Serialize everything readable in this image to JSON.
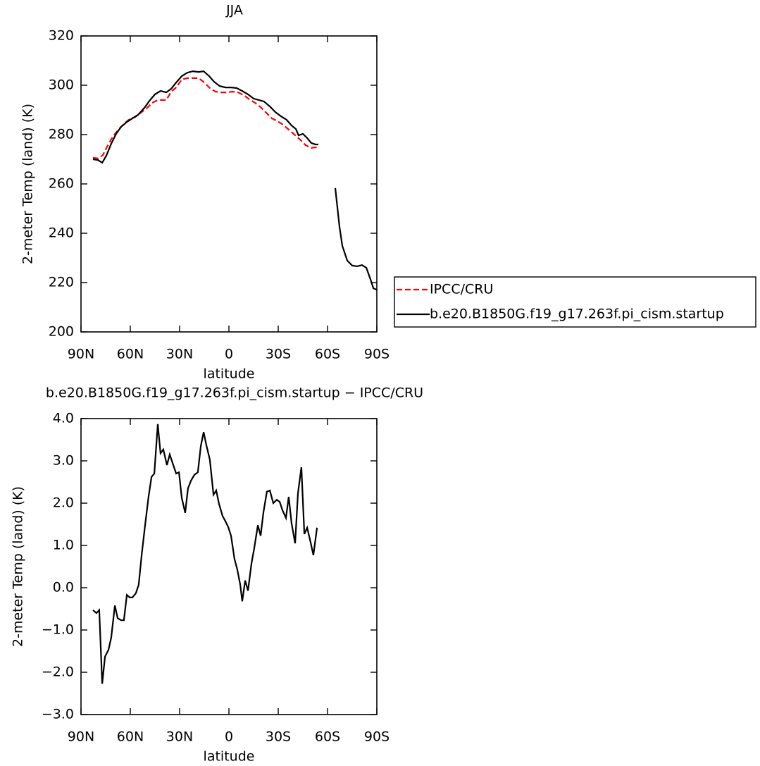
{
  "chart_data": [
    {
      "type": "line",
      "title": "JJA",
      "xlabel": "latitude",
      "ylabel": "2-meter Temp (land) (K)",
      "xlim": [
        90,
        -90
      ],
      "xticks": [
        {
          "value": 90,
          "label": "90N"
        },
        {
          "value": 60,
          "label": "60N"
        },
        {
          "value": 30,
          "label": "30N"
        },
        0,
        {
          "value": -30,
          "label": "30S"
        },
        {
          "value": -60,
          "label": "60S"
        },
        {
          "value": -90,
          "label": "90S"
        }
      ],
      "ylim": [
        200,
        320
      ],
      "yticks": [
        200,
        220,
        240,
        260,
        280,
        300,
        320
      ],
      "legend": "right",
      "series": [
        {
          "name": "IPCC/CRU",
          "color": "#ff0000",
          "style": "dashed",
          "x": [
            82.7,
            79.7,
            76.7,
            74.1,
            70.7,
            67.3,
            63.9,
            60.4,
            57,
            53.6,
            50.1,
            46.7,
            43.3,
            41.1,
            38.1,
            35.1,
            32.1,
            28.7,
            25.3,
            21.9,
            18.4,
            15,
            11.6,
            8.1,
            4.7,
            1.3,
            -2.1,
            -5.6,
            -9,
            -12.4,
            -15.9,
            -19.3,
            -22.7,
            -26.1,
            -29.6,
            -33,
            -36.4,
            -39.9,
            -43.3,
            -46.7,
            -50.1,
            -53.6
          ],
          "values": [
            270.6,
            270.3,
            271.7,
            275.1,
            279.1,
            282,
            284.3,
            286.3,
            287.1,
            288.9,
            290.6,
            292.9,
            294,
            294,
            294,
            297.4,
            299.1,
            302.3,
            302.9,
            302.9,
            302.9,
            301.1,
            298.9,
            297.4,
            297.1,
            297.1,
            297.4,
            297.1,
            296,
            294.3,
            292.9,
            291.1,
            288.9,
            286.6,
            285.4,
            284,
            282,
            280,
            278,
            275.7,
            274.6,
            274.9
          ]
        },
        {
          "name": "b.e20.B1850G.f19_g17.263f.pi_cism.startup",
          "color": "#000000",
          "style": "solid",
          "x": [
            82.7,
            79.7,
            77.1,
            74.6,
            71.6,
            68.6,
            65.6,
            62.1,
            58.7,
            55.3,
            51.4,
            48,
            45,
            41.6,
            38.1,
            35.1,
            32.1,
            28.7,
            25.3,
            21.9,
            18.4,
            15.4,
            12,
            9,
            5.6,
            2.1,
            -1.3,
            -4.7,
            -8.1,
            -11.6,
            -15,
            -18.4,
            -21.4,
            -24.9,
            -28.3,
            -31.7,
            -35.1,
            -38.1,
            -40.7,
            -42.4,
            -45,
            -47.6,
            -50.1,
            -52.7,
            -54.4,
            null,
            -64.7,
            -67.3,
            -69,
            -72,
            -75,
            -78,
            -81,
            -83.6,
            -86.1,
            -87.9,
            -90
          ],
          "values": [
            270,
            269.7,
            268.6,
            271.4,
            276.3,
            280.3,
            283.1,
            285.1,
            286.6,
            288,
            290.9,
            294,
            296.3,
            297.7,
            297.1,
            298.6,
            301.1,
            303.7,
            305.1,
            305.7,
            305.4,
            305.7,
            303.7,
            301.4,
            299.7,
            299.1,
            299.1,
            298.9,
            297.7,
            296.3,
            294.6,
            294,
            293.4,
            291.4,
            289.1,
            287.4,
            286,
            283.7,
            282.3,
            279.7,
            280.3,
            278.6,
            276.6,
            276,
            276,
            null,
            258.3,
            242.6,
            234.9,
            228.9,
            226.9,
            226.6,
            227.1,
            226,
            221.4,
            217.7,
            217.1
          ]
        }
      ]
    },
    {
      "type": "line",
      "title": "b.e20.B1850G.f19_g17.263f.pi_cism.startup − IPCC/CRU",
      "xlabel": "latitude",
      "ylabel": "2-meter Temp (land) (K)",
      "xlim": [
        90,
        -90
      ],
      "xticks": [
        {
          "value": 90,
          "label": "90N"
        },
        {
          "value": 60,
          "label": "60N"
        },
        {
          "value": 30,
          "label": "30N"
        },
        0,
        {
          "value": -30,
          "label": "30S"
        },
        {
          "value": -60,
          "label": "60S"
        },
        {
          "value": -90,
          "label": "90S"
        }
      ],
      "ylim": [
        -3,
        4
      ],
      "yticks": [
        {
          "value": -3,
          "label": "−3.0"
        },
        {
          "value": -2,
          "label": "−2.0"
        },
        {
          "value": -1,
          "label": "−1.0"
        },
        {
          "value": 0,
          "label": "0.0"
        },
        {
          "value": 1,
          "label": "1.0"
        },
        {
          "value": 2,
          "label": "2.0"
        },
        {
          "value": 3,
          "label": "3.0"
        },
        {
          "value": 4,
          "label": "4.0"
        }
      ],
      "series": [
        {
          "color": "#000000",
          "style": "solid",
          "x": [
            82.7,
            80.6,
            78.9,
            77.1,
            75.4,
            73.3,
            71.6,
            69.4,
            67.7,
            65.6,
            63.9,
            62.1,
            60.4,
            58.7,
            56.6,
            54.9,
            53.1,
            51,
            48.9,
            47.1,
            45.4,
            43.3,
            41.6,
            39.9,
            37.7,
            36,
            34.3,
            32.1,
            30.4,
            28.7,
            26.6,
            24.9,
            23.1,
            21,
            18.9,
            17.1,
            15.4,
            13.7,
            11.6,
            9.4,
            7.7,
            6,
            3.9,
            2.1,
            0.4,
            -1.3,
            -3.4,
            -5.1,
            -6.9,
            -8.1,
            -9.9,
            -11.6,
            -13.7,
            -15.4,
            -17.6,
            -19.3,
            -21,
            -23.1,
            -24.9,
            -27,
            -29.1,
            -30.9,
            -32.6,
            -34.7,
            -36.4,
            -38.1,
            -40.3,
            -42,
            -44.1,
            -45.9,
            -47.6,
            -49.7,
            -51.4,
            -53.6
          ],
          "values": [
            -0.53,
            -0.6,
            -0.53,
            -2.27,
            -1.63,
            -1.47,
            -1.18,
            -0.42,
            -0.72,
            -0.77,
            -0.77,
            -0.17,
            -0.23,
            -0.23,
            -0.13,
            0.07,
            0.77,
            1.48,
            2.15,
            2.62,
            2.7,
            3.87,
            3.18,
            3.27,
            2.9,
            3.15,
            2.95,
            2.7,
            2.73,
            2.13,
            1.77,
            2.35,
            2.53,
            2.67,
            2.73,
            3.35,
            3.68,
            3.37,
            3.03,
            2.2,
            2.3,
            1.98,
            1.7,
            1.57,
            1.43,
            1.23,
            0.68,
            0.43,
            0.07,
            -0.32,
            0.17,
            -0.07,
            0.57,
            0.93,
            1.48,
            1.23,
            1.78,
            2.27,
            2.3,
            2,
            2.08,
            2.03,
            1.83,
            1.65,
            2.15,
            1.53,
            1.05,
            2.23,
            2.85,
            1.27,
            1.42,
            1.07,
            0.77,
            1.42
          ]
        }
      ]
    }
  ]
}
